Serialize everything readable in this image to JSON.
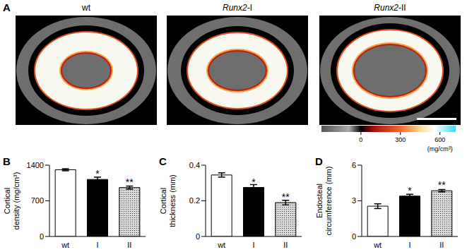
{
  "image_panel": {
    "label": "A",
    "titles": [
      "wt",
      "Runx2-I",
      "Runx2-II"
    ],
    "colorbar": {
      "range": [
        -300,
        720
      ],
      "ticks": [
        0,
        300,
        600
      ],
      "unit": "(mg/cm³)"
    }
  },
  "chart_data": [
    {
      "panel": "B",
      "type": "bar",
      "categories": [
        "wt",
        "I",
        "II"
      ],
      "values": [
        1310,
        1120,
        960
      ],
      "errors": [
        20,
        45,
        30
      ],
      "significance": [
        null,
        "*",
        "**"
      ],
      "colors": [
        "#ffffff",
        "#000000",
        "#d9d9d9"
      ],
      "y_label": "Cortical density (mg/cm³)",
      "ylim": [
        0,
        1400
      ],
      "yticks": [
        0,
        700,
        1400
      ]
    },
    {
      "panel": "C",
      "type": "bar",
      "categories": [
        "wt",
        "I",
        "II"
      ],
      "values": [
        0.345,
        0.275,
        0.19
      ],
      "errors": [
        0.012,
        0.016,
        0.013
      ],
      "significance": [
        null,
        "*",
        "**"
      ],
      "colors": [
        "#ffffff",
        "#000000",
        "#d9d9d9"
      ],
      "y_label": "Cortical thickness (mm)",
      "ylim": [
        0,
        0.4
      ],
      "yticks": [
        0,
        0.2,
        0.4
      ]
    },
    {
      "panel": "D",
      "type": "bar",
      "categories": [
        "wt",
        "I",
        "II"
      ],
      "values": [
        2.55,
        3.4,
        3.85
      ],
      "errors": [
        0.2,
        0.15,
        0.1
      ],
      "significance": [
        null,
        "*",
        "**"
      ],
      "colors": [
        "#ffffff",
        "#000000",
        "#d9d9d9"
      ],
      "y_label": "Endosteal circumference (mm)",
      "ylim": [
        0,
        6
      ],
      "yticks": [
        0,
        3,
        6
      ]
    }
  ]
}
